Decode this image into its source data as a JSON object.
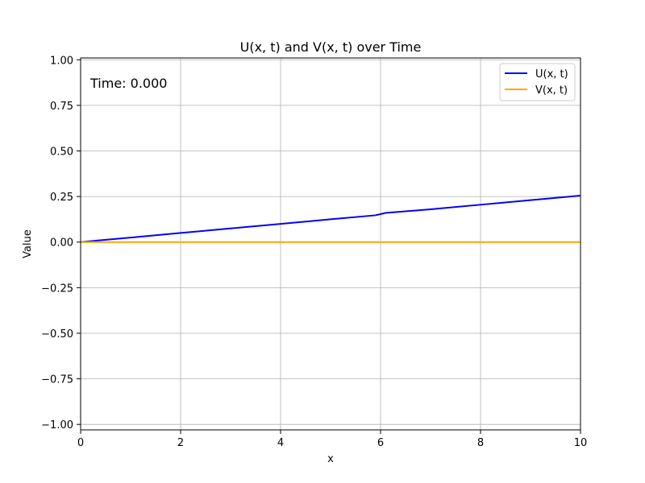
{
  "chart_data": {
    "type": "line",
    "title": "U(x, t) and V(x, t) over Time",
    "xlabel": "x",
    "ylabel": "Value",
    "xlim": [
      0,
      10
    ],
    "ylim": [
      -1.03,
      1.01
    ],
    "grid": true,
    "legend_position": "top-right",
    "annotation": "Time: 0.000",
    "x_ticks": [
      0,
      2,
      4,
      6,
      8,
      10
    ],
    "x_tick_labels": [
      "0",
      "2",
      "4",
      "6",
      "8",
      "10"
    ],
    "y_ticks": [
      -1.0,
      -0.75,
      -0.5,
      -0.25,
      0.0,
      0.25,
      0.5,
      0.75,
      1.0
    ],
    "y_tick_labels": [
      "−1.00",
      "−0.75",
      "−0.50",
      "−0.25",
      "0.00",
      "0.25",
      "0.50",
      "0.75",
      "1.00"
    ],
    "series": [
      {
        "name": "U(x, t)",
        "color": "#0000ff",
        "x": [
          0,
          1,
          2,
          3,
          4,
          5,
          5.9,
          6.1,
          7,
          8,
          9,
          10
        ],
        "y": [
          0,
          0.025,
          0.05,
          0.075,
          0.1,
          0.125,
          0.147,
          0.16,
          0.18,
          0.205,
          0.23,
          0.255
        ]
      },
      {
        "name": "V(x, t)",
        "color": "#ffa500",
        "x": [
          0,
          10
        ],
        "y": [
          0,
          0
        ]
      }
    ]
  }
}
